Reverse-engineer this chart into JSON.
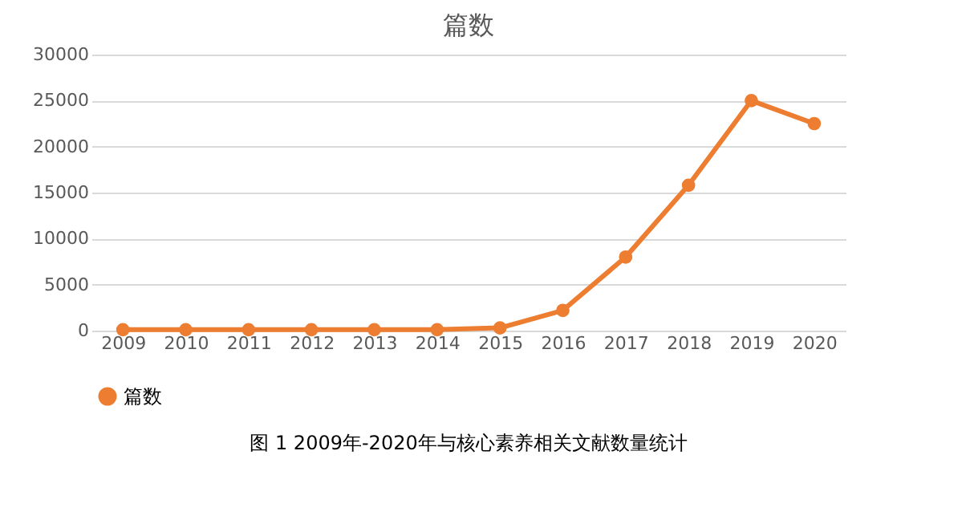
{
  "chart_data": {
    "type": "line",
    "title": "篇数",
    "categories": [
      "2009",
      "2010",
      "2011",
      "2012",
      "2013",
      "2014",
      "2015",
      "2016",
      "2017",
      "2018",
      "2019",
      "2020"
    ],
    "series": [
      {
        "name": "篇数",
        "color": "#ed7d31",
        "values": [
          100,
          100,
          100,
          100,
          100,
          100,
          300,
          2200,
          8000,
          15800,
          25000,
          22500
        ]
      }
    ],
    "ylim": [
      0,
      30000
    ],
    "yticks": [
      0,
      5000,
      10000,
      15000,
      20000,
      25000,
      30000
    ],
    "grid": "y",
    "legend": "bottom",
    "marker": "circle",
    "line_style": "solid",
    "annotations": [
      "图 1 2009年-2020年与核心素养相关文献数量统计"
    ]
  }
}
